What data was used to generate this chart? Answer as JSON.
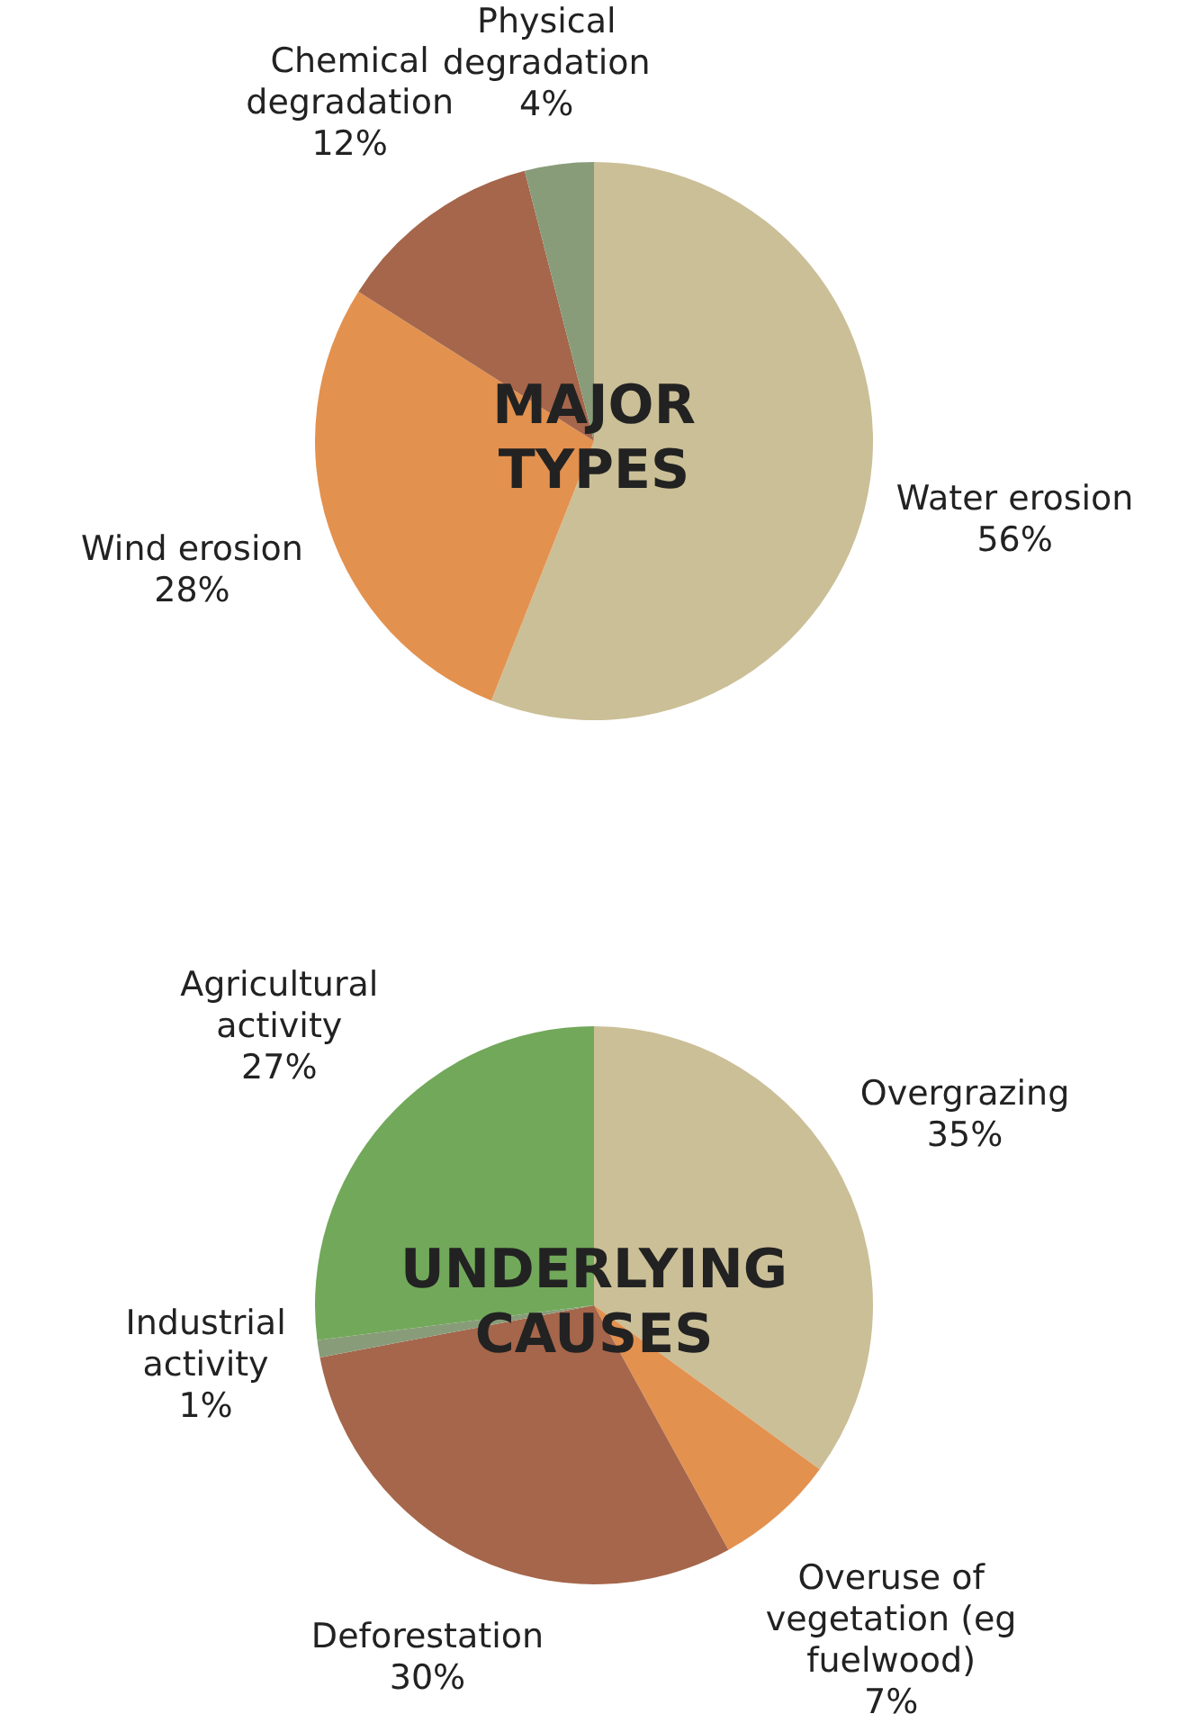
{
  "chart_data": [
    {
      "type": "pie",
      "title": "MAJOR TYPES",
      "categories": [
        "Water erosion",
        "Wind erosion",
        "Chemical degradation",
        "Physical degradation"
      ],
      "values": [
        56,
        28,
        12,
        4
      ],
      "colors": [
        "#cbbf97",
        "#e3914f",
        "#a5664b",
        "#889c7a"
      ],
      "value_labels": [
        "56%",
        "28%",
        "12%",
        "4%"
      ],
      "legend": false
    },
    {
      "type": "pie",
      "title": "UNDERLYING CAUSES",
      "categories": [
        "Overgrazing",
        "Overuse of vegetation (eg fuelwood)",
        "Deforestation",
        "Industrial activity",
        "Agricultural activity"
      ],
      "values": [
        35,
        7,
        30,
        1,
        27
      ],
      "colors": [
        "#cbbf97",
        "#e3914f",
        "#a5664b",
        "#889c7a",
        "#72a85a"
      ],
      "value_labels": [
        "35%",
        "7%",
        "30%",
        "1%",
        "27%"
      ],
      "legend": false
    }
  ]
}
